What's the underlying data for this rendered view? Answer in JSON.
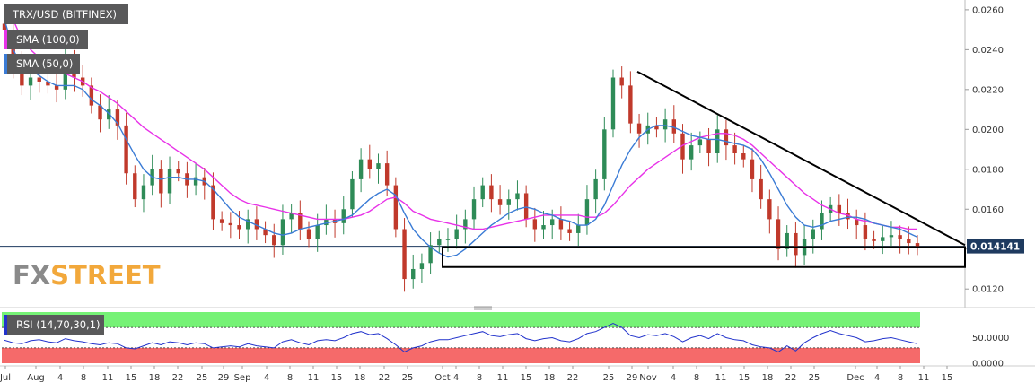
{
  "chart_data": [
    {
      "type": "candlestick",
      "title": "TRX/USD (BITFINEX)",
      "indicators": [
        {
          "name": "SMA (100,0)",
          "color": "#e832e8"
        },
        {
          "name": "SMA (50,0)",
          "color": "#3a7bd5"
        }
      ],
      "y_ticks": [
        "0.0260",
        "0.0240",
        "0.0220",
        "0.0200",
        "0.0180",
        "0.0160",
        "0.0140",
        "0.0120"
      ],
      "ylim": [
        0.0112,
        0.0264
      ],
      "last_price": "0.014141",
      "x_ticks": [
        "Jul",
        "Aug",
        "4",
        "8",
        "11",
        "15",
        "18",
        "22",
        "25",
        "29",
        "Sep",
        "4",
        "8",
        "11",
        "15",
        "18",
        "22",
        "25",
        "Oct",
        "4",
        "8",
        "11",
        "15",
        "18",
        "22",
        "25",
        "29",
        "Nov",
        "4",
        "8",
        "11",
        "15",
        "18",
        "22",
        "25",
        "Dec",
        "4",
        "8",
        "11",
        "15"
      ],
      "price_path": [
        0.025,
        0.0232,
        0.0222,
        0.0226,
        0.0224,
        0.0222,
        0.022,
        0.0235,
        0.0226,
        0.0222,
        0.0212,
        0.0205,
        0.021,
        0.0202,
        0.0178,
        0.0165,
        0.0172,
        0.018,
        0.0168,
        0.018,
        0.0178,
        0.0172,
        0.0176,
        0.0172,
        0.0155,
        0.0153,
        0.0152,
        0.015,
        0.0155,
        0.015,
        0.0147,
        0.0142,
        0.0155,
        0.0158,
        0.015,
        0.0145,
        0.0152,
        0.0155,
        0.0153,
        0.016,
        0.0175,
        0.0185,
        0.018,
        0.0183,
        0.0172,
        0.015,
        0.0125,
        0.013,
        0.0133,
        0.0142,
        0.0145,
        0.0145,
        0.015,
        0.0155,
        0.0165,
        0.0172,
        0.0165,
        0.0162,
        0.0165,
        0.0168,
        0.0155,
        0.015,
        0.0152,
        0.0155,
        0.015,
        0.0148,
        0.0152,
        0.0165,
        0.0175,
        0.02,
        0.0226,
        0.0222,
        0.0203,
        0.0198,
        0.0202,
        0.02,
        0.0205,
        0.0198,
        0.0185,
        0.0192,
        0.0195,
        0.0188,
        0.02,
        0.0192,
        0.0188,
        0.0185,
        0.0175,
        0.0165,
        0.0155,
        0.014,
        0.0148,
        0.0137,
        0.0145,
        0.015,
        0.0158,
        0.0162,
        0.0158,
        0.0155,
        0.0152,
        0.0145,
        0.0144,
        0.0146,
        0.0147,
        0.0145,
        0.0143,
        0.0141
      ],
      "sma50": [
        0.0255,
        0.024,
        0.0232,
        0.023,
        0.0227,
        0.0224,
        0.0222,
        0.0222,
        0.0222,
        0.022,
        0.0215,
        0.0212,
        0.0208,
        0.0203,
        0.0195,
        0.0187,
        0.018,
        0.0176,
        0.0175,
        0.0176,
        0.0176,
        0.0175,
        0.0175,
        0.0174,
        0.017,
        0.0165,
        0.016,
        0.0156,
        0.0154,
        0.0152,
        0.015,
        0.0148,
        0.0147,
        0.0148,
        0.015,
        0.0151,
        0.0152,
        0.0153,
        0.0154,
        0.0155,
        0.0157,
        0.0161,
        0.0165,
        0.0168,
        0.017,
        0.0167,
        0.0158,
        0.015,
        0.0145,
        0.0141,
        0.0138,
        0.0136,
        0.0137,
        0.014,
        0.0144,
        0.0148,
        0.0152,
        0.0155,
        0.0158,
        0.016,
        0.0161,
        0.016,
        0.0158,
        0.0157,
        0.0155,
        0.0154,
        0.0152,
        0.0152,
        0.0155,
        0.0162,
        0.0172,
        0.0182,
        0.019,
        0.0196,
        0.02,
        0.0202,
        0.0202,
        0.0201,
        0.0199,
        0.0197,
        0.0196,
        0.0195,
        0.0195,
        0.0194,
        0.0193,
        0.0192,
        0.019,
        0.0185,
        0.0178,
        0.017,
        0.0162,
        0.0156,
        0.0152,
        0.0151,
        0.0152,
        0.0154,
        0.0155,
        0.0156,
        0.0156,
        0.0155,
        0.0153,
        0.0152,
        0.0151,
        0.015,
        0.0148,
        0.0146
      ],
      "sma100": [
        0.0262,
        0.0255,
        0.0245,
        0.024,
        0.0236,
        0.0233,
        0.023,
        0.0228,
        0.0226,
        0.0224,
        0.0221,
        0.0219,
        0.0216,
        0.0213,
        0.0209,
        0.0205,
        0.0201,
        0.0198,
        0.0195,
        0.0192,
        0.0189,
        0.0186,
        0.0183,
        0.018,
        0.0176,
        0.0172,
        0.0168,
        0.0165,
        0.0163,
        0.0162,
        0.0161,
        0.016,
        0.0159,
        0.0158,
        0.0157,
        0.0156,
        0.0155,
        0.0155,
        0.0155,
        0.0155,
        0.0156,
        0.0157,
        0.0159,
        0.0162,
        0.0165,
        0.0166,
        0.0163,
        0.0159,
        0.0157,
        0.0155,
        0.0154,
        0.0153,
        0.0152,
        0.0151,
        0.015,
        0.015,
        0.0151,
        0.0152,
        0.0153,
        0.0154,
        0.0155,
        0.0156,
        0.0157,
        0.0157,
        0.0157,
        0.0157,
        0.0157,
        0.0156,
        0.0156,
        0.0158,
        0.0162,
        0.0167,
        0.0172,
        0.0176,
        0.018,
        0.0183,
        0.0186,
        0.0189,
        0.0192,
        0.0194,
        0.0196,
        0.0197,
        0.0198,
        0.0198,
        0.0197,
        0.0195,
        0.0192,
        0.0188,
        0.0184,
        0.018,
        0.0176,
        0.0172,
        0.0168,
        0.0165,
        0.0162,
        0.016,
        0.0158,
        0.0157,
        0.0155,
        0.0154,
        0.0153,
        0.0152,
        0.0151,
        0.0151,
        0.015,
        0.015
      ],
      "trendline": {
        "from": [
          "Oct 29",
          0.0229
        ],
        "to": [
          "Dec 15",
          0.0142
        ]
      },
      "support_box": {
        "high": 0.0141,
        "low": 0.0131
      }
    },
    {
      "type": "line",
      "title": "RSI (14,70,30,1)",
      "y_ticks": [
        "50.0000",
        "0.0000"
      ],
      "upper_band": 70,
      "lower_band": 30,
      "values": [
        45,
        40,
        38,
        44,
        46,
        42,
        40,
        48,
        44,
        42,
        38,
        36,
        40,
        38,
        30,
        28,
        34,
        40,
        36,
        42,
        40,
        36,
        40,
        38,
        30,
        32,
        34,
        32,
        38,
        34,
        32,
        30,
        42,
        46,
        40,
        36,
        44,
        46,
        44,
        50,
        58,
        62,
        56,
        58,
        48,
        36,
        22,
        30,
        34,
        42,
        46,
        46,
        50,
        54,
        58,
        62,
        54,
        52,
        56,
        58,
        48,
        44,
        48,
        50,
        44,
        42,
        48,
        58,
        62,
        70,
        78,
        70,
        54,
        50,
        56,
        54,
        58,
        52,
        42,
        50,
        54,
        48,
        58,
        50,
        46,
        44,
        36,
        32,
        30,
        22,
        34,
        24,
        40,
        50,
        58,
        64,
        58,
        54,
        50,
        42,
        44,
        48,
        50,
        46,
        42,
        38
      ]
    }
  ],
  "watermark": {
    "prefix": "FX",
    "suffix": "STREET",
    "accent": "#f2a83b"
  },
  "colors": {
    "bull": "#2e8b57",
    "bear": "#c0392b",
    "sma100": "#e832e8",
    "sma50": "#3a7bd5",
    "rsi": "#2233cc",
    "rsi_upper": "#76f276",
    "rsi_lower": "#f56a6a",
    "last_price_bg": "#1e3a5f"
  }
}
